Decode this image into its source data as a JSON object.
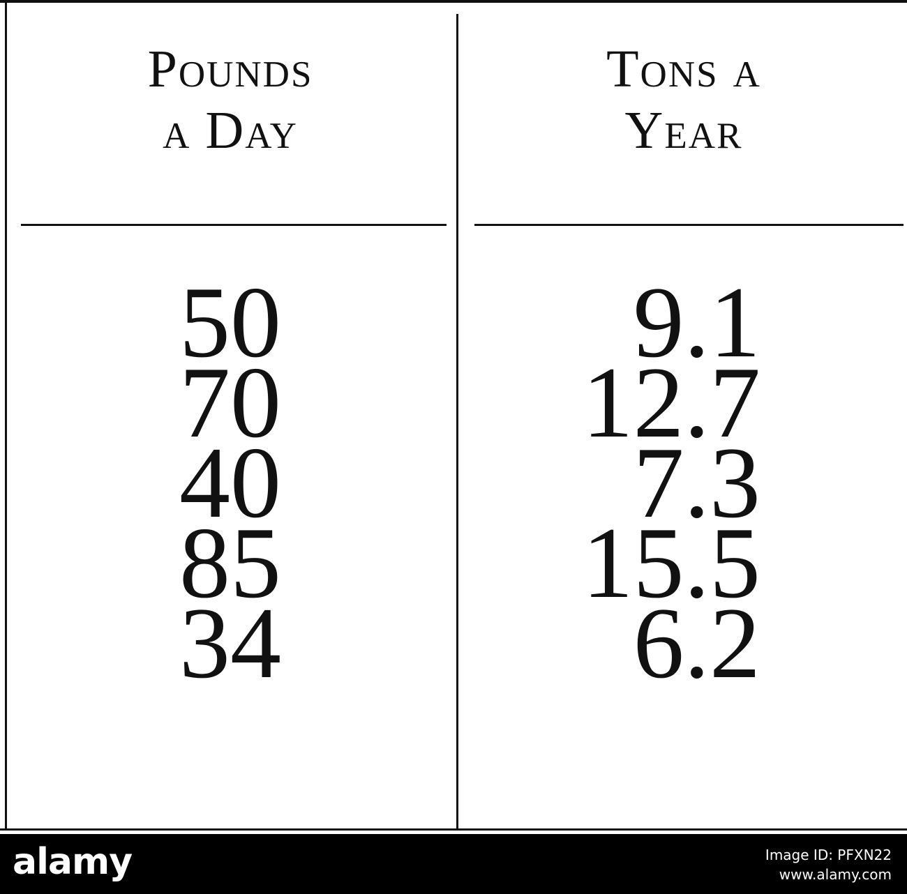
{
  "table": {
    "header": [
      [
        "Pounds",
        "a Day"
      ],
      [
        "Tons a",
        "Year"
      ]
    ],
    "rows": [
      [
        50,
        9.1
      ],
      [
        70,
        12.7
      ],
      [
        40,
        7.3
      ],
      [
        85,
        15.5
      ],
      [
        34,
        6.2
      ]
    ]
  },
  "watermark": {
    "logo": "alamy",
    "image_id": "Image ID: PFXN22",
    "url": "www.alamy.com"
  }
}
